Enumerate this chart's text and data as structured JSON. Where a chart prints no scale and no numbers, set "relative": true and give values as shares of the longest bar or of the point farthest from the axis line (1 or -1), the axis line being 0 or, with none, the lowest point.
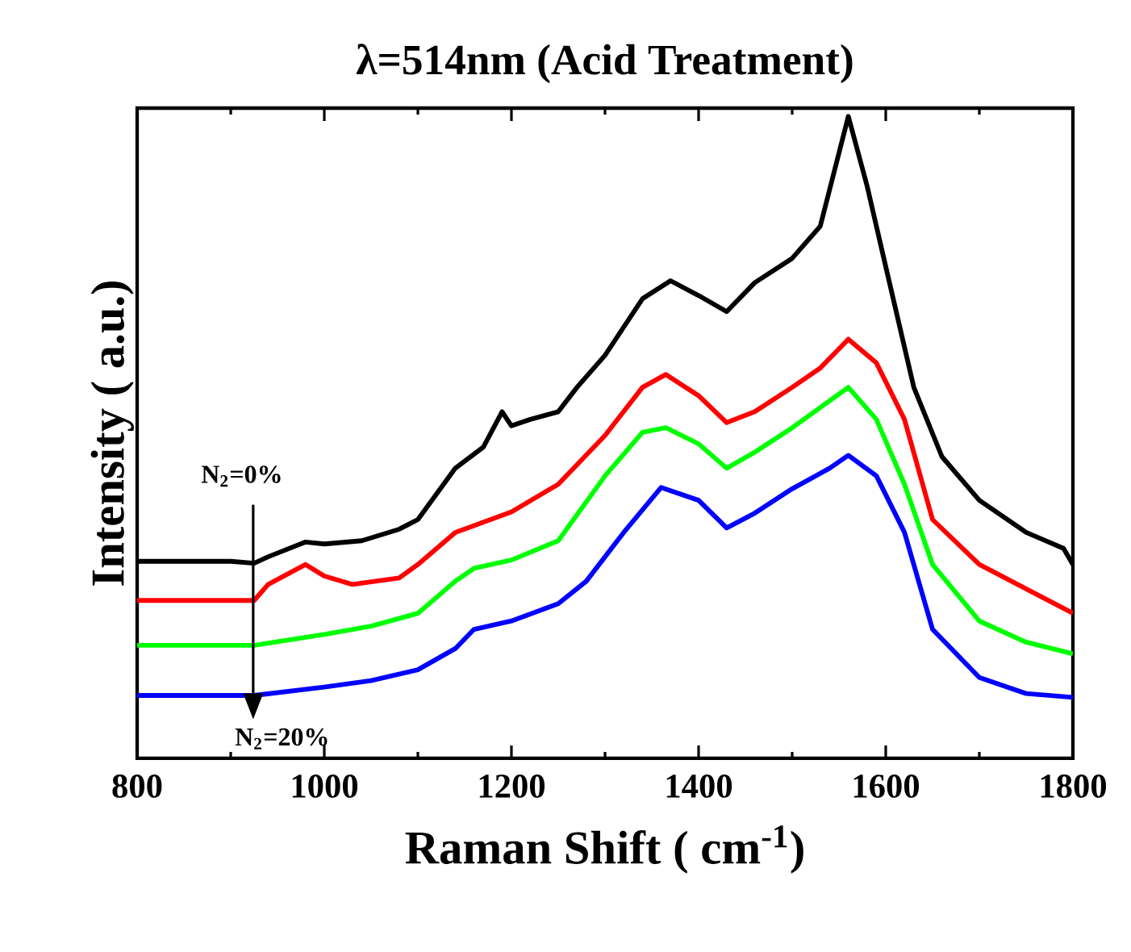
{
  "chart_data": {
    "type": "line",
    "title": "λ=514nm (Acid Treatment)",
    "xlabel": "Raman Shift ( cm$^{-1}$)",
    "ylabel": "Intensity ( a.u.)",
    "relative": true,
    "xlim": [
      800,
      1800
    ],
    "xticks": [
      800,
      1000,
      1200,
      1400,
      1600,
      1800
    ],
    "tick_labels": "x",
    "line_style": "solid",
    "annotations": [
      "N$_{2}$=0%",
      "N$_{2}$=20%"
    ],
    "series": [
      {
        "color": "#000000",
        "x": [
          800,
          900,
          925,
          940,
          980,
          1000,
          1040,
          1080,
          1100,
          1140,
          1170,
          1190,
          1200,
          1220,
          1250,
          1270,
          1300,
          1340,
          1370,
          1400,
          1430,
          1460,
          1500,
          1530,
          1560,
          1580,
          1600,
          1630,
          1660,
          1700,
          1750,
          1790,
          1800
        ],
        "values": [
          0.307,
          0.307,
          0.304,
          0.314,
          0.337,
          0.334,
          0.339,
          0.357,
          0.372,
          0.452,
          0.485,
          0.54,
          0.518,
          0.528,
          0.54,
          0.578,
          0.628,
          0.716,
          0.744,
          0.721,
          0.696,
          0.741,
          0.779,
          0.829,
          1.0,
          0.892,
          0.766,
          0.578,
          0.47,
          0.402,
          0.352,
          0.327,
          0.302
        ]
      },
      {
        "color": "#ff0000",
        "x": [
          800,
          925,
          940,
          980,
          1000,
          1030,
          1080,
          1100,
          1140,
          1200,
          1250,
          1300,
          1340,
          1365,
          1400,
          1430,
          1460,
          1500,
          1530,
          1560,
          1590,
          1620,
          1650,
          1700,
          1750,
          1800
        ],
        "values": [
          0.246,
          0.246,
          0.271,
          0.302,
          0.284,
          0.271,
          0.281,
          0.302,
          0.352,
          0.384,
          0.427,
          0.503,
          0.578,
          0.598,
          0.565,
          0.523,
          0.54,
          0.578,
          0.608,
          0.653,
          0.616,
          0.528,
          0.372,
          0.302,
          0.264,
          0.226
        ]
      },
      {
        "color": "#00ff00",
        "x": [
          800,
          925,
          1000,
          1050,
          1100,
          1140,
          1160,
          1200,
          1250,
          1300,
          1340,
          1365,
          1400,
          1430,
          1460,
          1500,
          1560,
          1590,
          1620,
          1650,
          1700,
          1750,
          1800
        ],
        "values": [
          0.176,
          0.176,
          0.193,
          0.206,
          0.226,
          0.276,
          0.296,
          0.309,
          0.339,
          0.44,
          0.508,
          0.515,
          0.49,
          0.452,
          0.477,
          0.515,
          0.578,
          0.528,
          0.427,
          0.302,
          0.214,
          0.181,
          0.163
        ]
      },
      {
        "color": "#0000ff",
        "x": [
          800,
          925,
          1000,
          1050,
          1100,
          1140,
          1160,
          1200,
          1250,
          1280,
          1320,
          1360,
          1400,
          1430,
          1460,
          1500,
          1540,
          1560,
          1590,
          1620,
          1650,
          1700,
          1750,
          1800
        ],
        "values": [
          0.098,
          0.098,
          0.111,
          0.121,
          0.138,
          0.171,
          0.201,
          0.214,
          0.241,
          0.276,
          0.352,
          0.422,
          0.402,
          0.359,
          0.382,
          0.42,
          0.452,
          0.472,
          0.44,
          0.352,
          0.201,
          0.126,
          0.101,
          0.095
        ]
      }
    ]
  }
}
